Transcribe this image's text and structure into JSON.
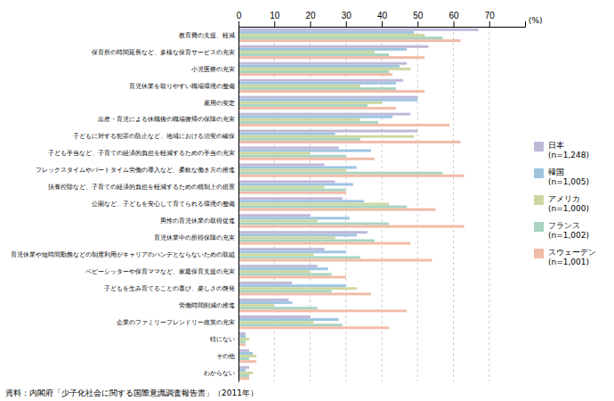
{
  "chart_data": {
    "type": "bar",
    "orientation": "horizontal",
    "categories": [
      "教育費の支援、軽減",
      "保育所の時間延長など、多様な保育サービスの充実",
      "小児医療の充実",
      "育児休業を取りやすい職場環境の整備",
      "雇用の安定",
      "出産・育児による休職後の職場復帰の保障の充実",
      "子どもに対する犯罪の防止など、地域における治安の確保",
      "子ども手当など、子育ての経済的負担を軽減するための手当の充実",
      "フレックスタイムやパートタイム労働の導入など、柔軟な働き方の推進",
      "扶養控除など、子育ての経済的負担を軽減するための税制上の措置",
      "公園など、子どもを安心して育てられる環境の整備",
      "男性の育児休業の取得促進",
      "育児休業中の所得保障の充実",
      "育児休業や短時間勤務などの制度利用がキャリアのハンデとならないための取組",
      "ベビーシッターや保育ママなど、家庭保育支援の充実",
      "子どもを生み育てることの喜び、楽しさの啓発",
      "労働時間削減の推進",
      "企業のファミリーフレンドリー政策の充実",
      "特にない",
      "その他",
      "わからない"
    ],
    "series": [
      {
        "name": "日本\n(n=1,248)",
        "color": "#c0b8d8",
        "values": [
          67,
          53,
          47,
          46,
          50,
          48,
          50,
          28,
          24,
          27,
          29,
          20,
          36,
          24,
          22,
          15,
          14,
          20,
          2,
          3,
          3
        ]
      },
      {
        "name": "韓国\n(n=1,005)",
        "color": "#9ec4e0",
        "values": [
          49,
          47,
          45,
          44,
          50,
          43,
          27,
          37,
          33,
          32,
          35,
          31,
          33,
          30,
          25,
          30,
          15,
          28,
          2,
          4,
          2
        ]
      },
      {
        "name": "アメリカ\n(n=1,000)",
        "color": "#ccd8a0",
        "values": [
          52,
          38,
          48,
          34,
          40,
          34,
          49,
          20,
          30,
          24,
          42,
          22,
          27,
          21,
          20,
          33,
          10,
          21,
          3,
          5,
          4
        ]
      },
      {
        "name": "フランス\n(n=1,002)",
        "color": "#a8d4c0",
        "values": [
          57,
          42,
          42,
          44,
          36,
          39,
          34,
          30,
          57,
          30,
          47,
          42,
          38,
          34,
          26,
          26,
          22,
          29,
          2,
          3,
          3
        ]
      },
      {
        "name": "スウェーデン\n(n=1,001)",
        "color": "#f0bca8",
        "values": [
          62,
          52,
          43,
          52,
          44,
          59,
          62,
          38,
          63,
          30,
          55,
          63,
          48,
          54,
          30,
          37,
          47,
          42,
          2,
          5,
          3
        ]
      }
    ],
    "xlim": [
      0,
      80
    ],
    "xticks": [
      0,
      10,
      20,
      30,
      40,
      50,
      60,
      70
    ],
    "grid": true,
    "legend": "right",
    "annotations": [
      "(%)",
      "資料：内閣府「少子化社会に関する国際意識調査報告書」（2011年）"
    ]
  }
}
